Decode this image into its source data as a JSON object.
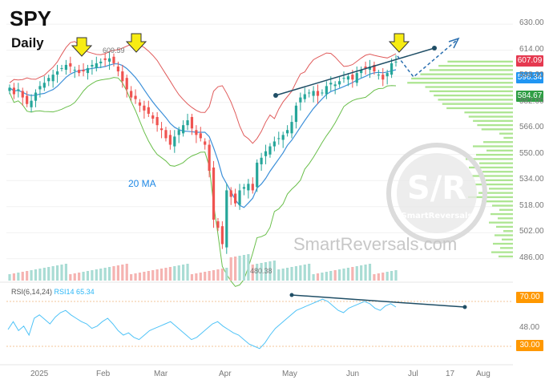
{
  "header": {
    "ticker": "SPY",
    "timeframe": "Daily"
  },
  "ma_label": "20 MA",
  "rsi_label": {
    "params": "RSI(6,14,24)",
    "value_text": "RSI14 65.34"
  },
  "watermark": {
    "text": "SmartReversals.com",
    "logo_main": "S/R",
    "logo_sub": "SmartReversals"
  },
  "price_tags": [
    {
      "value": "607.09",
      "color": "#e53950"
    },
    {
      "value": "596.34",
      "color": "#2196f3"
    },
    {
      "value": "584.67",
      "color": "#2e9e44"
    }
  ],
  "rsi_tags": [
    {
      "value": "70.00",
      "color": "#ff9800"
    },
    {
      "value": "30.00",
      "color": "#ff9800"
    }
  ],
  "annotations": {
    "high_label": "609.59",
    "low_label": "480.38"
  },
  "colors": {
    "up": "#26a69a",
    "down": "#ef5350",
    "bb": "#e05b5b",
    "bb_lower": "#6abf4b",
    "ma": "#3b8fd9",
    "trend": "#1f4e66",
    "rsi": "#4fc3f7",
    "arrow": "#f7ec13",
    "profile": "#9fe07e"
  },
  "chart_data": {
    "type": "candlestick",
    "title": "SPY",
    "subtitle": "Daily",
    "y_ticks": [
      630,
      614,
      598,
      582,
      566,
      550,
      534,
      518,
      502,
      486
    ],
    "ylim": [
      480,
      634
    ],
    "x_ticks": [
      "2025",
      "Feb",
      "Mar",
      "Apr",
      "May",
      "Jun",
      "Jul",
      "17",
      "Aug"
    ],
    "rsi_ticks": [
      70,
      48,
      30
    ],
    "rsi_ylim": [
      20,
      80
    ],
    "series_close_points": [
      {
        "month": "Jan",
        "values": [
          591,
          587,
          590,
          585,
          581,
          583,
          588,
          592,
          594,
          597,
          599,
          601,
          603,
          605,
          604,
          602
        ]
      },
      {
        "month": "Feb",
        "values": [
          600,
          601,
          603,
          605,
          606,
          607,
          608,
          609,
          606,
          601,
          595,
          590,
          585,
          584
        ]
      },
      {
        "month": "Mar",
        "values": [
          580,
          577,
          575,
          572,
          568,
          565,
          560,
          556,
          561,
          565,
          568,
          571,
          566,
          562
        ]
      },
      {
        "month": "Apr",
        "values": [
          560,
          556,
          540,
          510,
          505,
          495,
          528,
          524,
          520,
          528,
          530,
          532,
          528,
          545,
          548,
          552
        ]
      },
      {
        "month": "May",
        "values": [
          555,
          558,
          560,
          562,
          565,
          570,
          580,
          585,
          587,
          588,
          589,
          586,
          588,
          592,
          594
        ]
      },
      {
        "month": "Jun",
        "values": [
          593,
          595,
          597,
          598,
          596,
          600,
          602,
          603,
          604,
          601,
          599,
          596,
          600,
          606,
          607
        ]
      }
    ],
    "rsi_values": [
      45,
      52,
      44,
      48,
      40,
      55,
      58,
      54,
      50,
      56,
      60,
      62,
      58,
      55,
      52,
      50,
      46,
      48,
      52,
      55,
      50,
      44,
      40,
      42,
      38,
      36,
      40,
      44,
      46,
      48,
      50,
      52,
      48,
      44,
      40,
      36,
      38,
      42,
      46,
      50,
      52,
      48,
      45,
      42,
      40,
      36,
      32,
      30,
      28,
      33,
      40,
      46,
      50,
      54,
      58,
      62,
      64,
      66,
      68,
      70,
      72,
      70,
      66,
      62,
      60,
      64,
      66,
      68,
      70,
      68,
      64,
      62,
      66,
      68,
      65
    ],
    "volume_profile_start": 607,
    "annotations": {
      "high": 609.59,
      "low": 480.38,
      "ma_period": 20
    }
  }
}
